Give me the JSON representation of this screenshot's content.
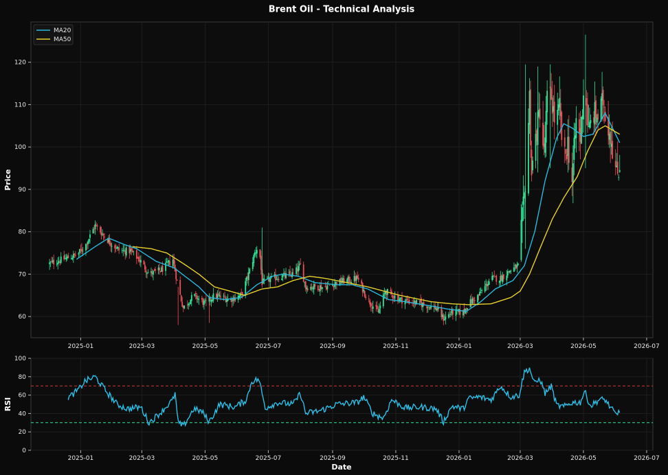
{
  "chart_data": [
    {
      "type": "candlestick",
      "title": "Brent Oil - Technical Analysis",
      "ylabel": "Price",
      "ylim": [
        55,
        129.5
      ],
      "y_ticks": [
        60,
        70,
        80,
        90,
        100,
        110,
        120
      ],
      "x_ticks": [
        "2025-01",
        "2025-03",
        "2025-05",
        "2025-07",
        "2025-09",
        "2025-11",
        "2026-01",
        "2026-03",
        "2026-05",
        "2026-07"
      ],
      "xlim": [
        "2024-11-14",
        "2026-07-07"
      ],
      "grid": true,
      "legend": {
        "placement": "top-left",
        "entries": [
          "MA20",
          "MA50"
        ]
      },
      "colors": {
        "up": "#2ee89a",
        "down": "#f0505a",
        "ma20": "#2bb8de",
        "ma50": "#e8d12a",
        "background": "#0b0b0b",
        "grid": "#1f1f1f"
      },
      "close_anchors": [
        [
          "2024-12-02",
          72.5
        ],
        [
          "2024-12-15",
          73.5
        ],
        [
          "2024-12-28",
          74.5
        ],
        [
          "2025-01-05",
          76.5
        ],
        [
          "2025-01-10",
          79
        ],
        [
          "2025-01-15",
          81.5
        ],
        [
          "2025-01-22",
          79.5
        ],
        [
          "2025-01-29",
          77.5
        ],
        [
          "2025-02-08",
          75.5
        ],
        [
          "2025-02-18",
          75.5
        ],
        [
          "2025-02-28",
          73
        ],
        [
          "2025-03-08",
          70
        ],
        [
          "2025-03-20",
          71
        ],
        [
          "2025-03-31",
          73.5
        ],
        [
          "2025-04-05",
          67
        ],
        [
          "2025-04-10",
          62
        ],
        [
          "2025-04-20",
          65
        ],
        [
          "2025-05-01",
          63
        ],
        [
          "2025-05-10",
          65
        ],
        [
          "2025-05-25",
          64
        ],
        [
          "2025-06-05",
          65
        ],
        [
          "2025-06-12",
          70
        ],
        [
          "2025-06-18",
          75
        ],
        [
          "2025-06-22",
          77
        ],
        [
          "2025-06-25",
          68
        ],
        [
          "2025-07-05",
          69
        ],
        [
          "2025-07-25",
          70
        ],
        [
          "2025-08-01",
          72
        ],
        [
          "2025-08-06",
          67
        ],
        [
          "2025-08-25",
          67
        ],
        [
          "2025-09-05",
          68
        ],
        [
          "2025-09-25",
          69
        ],
        [
          "2025-10-05",
          64
        ],
        [
          "2025-10-15",
          61
        ],
        [
          "2025-10-22",
          66
        ],
        [
          "2025-11-05",
          64
        ],
        [
          "2025-11-25",
          63
        ],
        [
          "2025-12-10",
          62
        ],
        [
          "2025-12-17",
          59.5
        ],
        [
          "2025-12-25",
          61
        ],
        [
          "2026-01-05",
          61
        ],
        [
          "2026-01-10",
          63
        ],
        [
          "2026-01-20",
          65
        ],
        [
          "2026-02-01",
          69
        ],
        [
          "2026-02-10",
          69
        ],
        [
          "2026-02-20",
          71
        ],
        [
          "2026-02-28",
          72
        ],
        [
          "2026-03-02",
          80
        ],
        [
          "2026-03-05",
          88
        ],
        [
          "2026-03-08",
          100
        ],
        [
          "2026-03-10",
          112
        ],
        [
          "2026-03-12",
          94
        ],
        [
          "2026-03-16",
          102
        ],
        [
          "2026-03-20",
          109
        ],
        [
          "2026-03-24",
          98
        ],
        [
          "2026-03-27",
          111
        ],
        [
          "2026-03-31",
          112
        ],
        [
          "2026-04-04",
          105
        ],
        [
          "2026-04-08",
          109
        ],
        [
          "2026-04-12",
          96
        ],
        [
          "2026-04-16",
          101
        ],
        [
          "2026-04-20",
          92
        ],
        [
          "2026-04-24",
          106
        ],
        [
          "2026-04-28",
          102
        ],
        [
          "2026-05-02",
          117
        ],
        [
          "2026-05-06",
          103
        ],
        [
          "2026-05-10",
          108
        ],
        [
          "2026-05-16",
          107
        ],
        [
          "2026-05-20",
          111
        ],
        [
          "2026-05-24",
          106
        ],
        [
          "2026-05-28",
          102
        ],
        [
          "2026-06-02",
          93
        ],
        [
          "2026-06-05",
          96
        ]
      ],
      "ma20_anchors": [
        [
          "2024-12-28",
          73.5
        ],
        [
          "2025-01-15",
          76.5
        ],
        [
          "2025-01-28",
          78.5
        ],
        [
          "2025-02-12",
          77
        ],
        [
          "2025-02-24",
          76
        ],
        [
          "2025-03-15",
          73
        ],
        [
          "2025-04-01",
          71.5
        ],
        [
          "2025-04-25",
          67
        ],
        [
          "2025-05-05",
          64.5
        ],
        [
          "2025-05-20",
          64
        ],
        [
          "2025-06-05",
          64.5
        ],
        [
          "2025-06-20",
          67.5
        ],
        [
          "2025-07-05",
          69.5
        ],
        [
          "2025-07-15",
          70
        ],
        [
          "2025-07-30",
          69.5
        ],
        [
          "2025-08-15",
          68
        ],
        [
          "2025-09-05",
          67.5
        ],
        [
          "2025-09-20",
          67.5
        ],
        [
          "2025-10-05",
          66.5
        ],
        [
          "2025-10-25",
          64
        ],
        [
          "2025-11-10",
          63.5
        ],
        [
          "2025-12-05",
          62.5
        ],
        [
          "2025-12-20",
          61.8
        ],
        [
          "2026-01-08",
          61.2
        ],
        [
          "2026-01-22",
          63.5
        ],
        [
          "2026-02-05",
          66.5
        ],
        [
          "2026-02-22",
          68.5
        ],
        [
          "2026-03-05",
          72
        ],
        [
          "2026-03-15",
          80
        ],
        [
          "2026-03-25",
          92
        ],
        [
          "2026-04-05",
          102
        ],
        [
          "2026-04-12",
          105.5
        ],
        [
          "2026-04-20",
          104.5
        ],
        [
          "2026-05-01",
          102.5
        ],
        [
          "2026-05-10",
          103
        ],
        [
          "2026-05-22",
          108
        ],
        [
          "2026-06-05",
          101
        ]
      ],
      "ma50_anchors": [
        [
          "2025-02-20",
          76.5
        ],
        [
          "2025-03-10",
          76
        ],
        [
          "2025-03-25",
          75
        ],
        [
          "2025-04-10",
          72.5
        ],
        [
          "2025-04-25",
          70
        ],
        [
          "2025-05-10",
          67
        ],
        [
          "2025-05-25",
          66
        ],
        [
          "2025-06-08",
          65
        ],
        [
          "2025-06-25",
          66.5
        ],
        [
          "2025-07-10",
          67
        ],
        [
          "2025-07-25",
          68.5
        ],
        [
          "2025-08-10",
          69.5
        ],
        [
          "2025-08-25",
          69
        ],
        [
          "2025-09-15",
          68
        ],
        [
          "2025-10-05",
          67
        ],
        [
          "2025-11-05",
          65
        ],
        [
          "2025-12-05",
          63.5
        ],
        [
          "2025-12-25",
          63
        ],
        [
          "2026-01-10",
          62.8
        ],
        [
          "2026-02-01",
          63
        ],
        [
          "2026-02-20",
          64.5
        ],
        [
          "2026-03-01",
          66
        ],
        [
          "2026-03-10",
          70
        ],
        [
          "2026-03-20",
          76
        ],
        [
          "2026-04-01",
          83
        ],
        [
          "2026-04-12",
          88
        ],
        [
          "2026-04-25",
          93
        ],
        [
          "2026-05-05",
          99
        ],
        [
          "2026-05-15",
          104
        ],
        [
          "2026-05-22",
          105
        ],
        [
          "2026-06-05",
          103
        ]
      ]
    },
    {
      "type": "line",
      "ylabel": "RSI",
      "xlabel": "Date",
      "ylim": [
        0,
        100
      ],
      "y_ticks": [
        0,
        20,
        40,
        60,
        80,
        100
      ],
      "x_ticks": [
        "2025-01",
        "2025-03",
        "2025-05",
        "2025-07",
        "2025-09",
        "2025-11",
        "2026-01",
        "2026-03",
        "2026-05",
        "2026-07"
      ],
      "reference_lines": [
        {
          "value": 70,
          "color": "#d63a3a",
          "style": "dashed"
        },
        {
          "value": 30,
          "color": "#2ee89a",
          "style": "dashed"
        }
      ],
      "grid": true,
      "colors": {
        "rsi": "#2bc0e8"
      },
      "rsi_anchors": [
        [
          "2024-12-20",
          57
        ],
        [
          "2024-12-30",
          66
        ],
        [
          "2025-01-05",
          75
        ],
        [
          "2025-01-15",
          80
        ],
        [
          "2025-01-25",
          65
        ],
        [
          "2025-02-05",
          50
        ],
        [
          "2025-02-15",
          45
        ],
        [
          "2025-02-28",
          47
        ],
        [
          "2025-03-08",
          30
        ],
        [
          "2025-03-20",
          42
        ],
        [
          "2025-03-31",
          55
        ],
        [
          "2025-04-02",
          62
        ],
        [
          "2025-04-05",
          30
        ],
        [
          "2025-04-10",
          26
        ],
        [
          "2025-04-20",
          45
        ],
        [
          "2025-04-28",
          42
        ],
        [
          "2025-05-05",
          31
        ],
        [
          "2025-05-15",
          50
        ],
        [
          "2025-05-30",
          47
        ],
        [
          "2025-06-10",
          55
        ],
        [
          "2025-06-15",
          75
        ],
        [
          "2025-06-22",
          77
        ],
        [
          "2025-06-28",
          46
        ],
        [
          "2025-07-10",
          52
        ],
        [
          "2025-07-25",
          50
        ],
        [
          "2025-08-01",
          62
        ],
        [
          "2025-08-06",
          40
        ],
        [
          "2025-08-20",
          43
        ],
        [
          "2025-09-05",
          50
        ],
        [
          "2025-09-25",
          52
        ],
        [
          "2025-10-01",
          58
        ],
        [
          "2025-10-10",
          40
        ],
        [
          "2025-10-20",
          35
        ],
        [
          "2025-10-28",
          55
        ],
        [
          "2025-11-10",
          46
        ],
        [
          "2025-11-25",
          47
        ],
        [
          "2025-12-10",
          45
        ],
        [
          "2025-12-17",
          31
        ],
        [
          "2025-12-25",
          48
        ],
        [
          "2026-01-05",
          45
        ],
        [
          "2026-01-10",
          56
        ],
        [
          "2026-01-20",
          58
        ],
        [
          "2026-02-01",
          55
        ],
        [
          "2026-02-10",
          70
        ],
        [
          "2026-02-20",
          58
        ],
        [
          "2026-02-28",
          60
        ],
        [
          "2026-03-05",
          85
        ],
        [
          "2026-03-10",
          89
        ],
        [
          "2026-03-15",
          72
        ],
        [
          "2026-03-20",
          78
        ],
        [
          "2026-03-25",
          62
        ],
        [
          "2026-03-31",
          70
        ],
        [
          "2026-04-05",
          49
        ],
        [
          "2026-04-12",
          47
        ],
        [
          "2026-04-20",
          52
        ],
        [
          "2026-04-28",
          52
        ],
        [
          "2026-05-02",
          64
        ],
        [
          "2026-05-08",
          48
        ],
        [
          "2026-05-16",
          55
        ],
        [
          "2026-05-22",
          55
        ],
        [
          "2026-05-28",
          45
        ],
        [
          "2026-06-02",
          38
        ],
        [
          "2026-06-05",
          44
        ]
      ]
    }
  ]
}
